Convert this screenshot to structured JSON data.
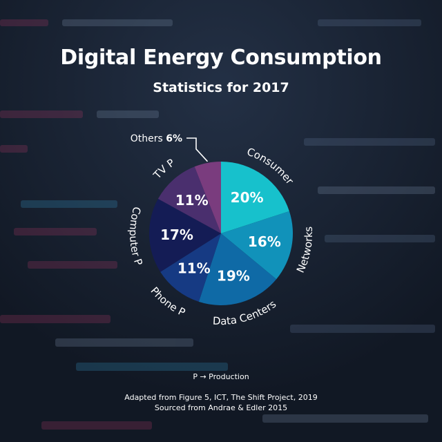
{
  "title": "Digital Energy Consumption",
  "subtitle": "Statistics for 2017",
  "chart_data": {
    "type": "pie",
    "categories": [
      "Consumer",
      "Networks",
      "Data Centers",
      "Phone P",
      "Computer P",
      "TV P",
      "Others"
    ],
    "values": [
      20,
      16,
      19,
      11,
      17,
      11,
      6
    ],
    "value_labels": [
      "20%",
      "16%",
      "19%",
      "11%",
      "17%",
      "11%",
      "6%"
    ],
    "colors": [
      "#17c1cc",
      "#1192ba",
      "#0f6aa6",
      "#163a83",
      "#141c55",
      "#4a2f6e",
      "#7a3c7e"
    ],
    "title": "Digital Energy Consumption",
    "subtitle": "Statistics for 2017",
    "legend": "labels around slices"
  },
  "footnote": "P → Production",
  "source_lines": [
    "Adapted from Figure 5, ICT, The Shift Project, 2019",
    "Sourced from Andrae & Edler 2015"
  ]
}
